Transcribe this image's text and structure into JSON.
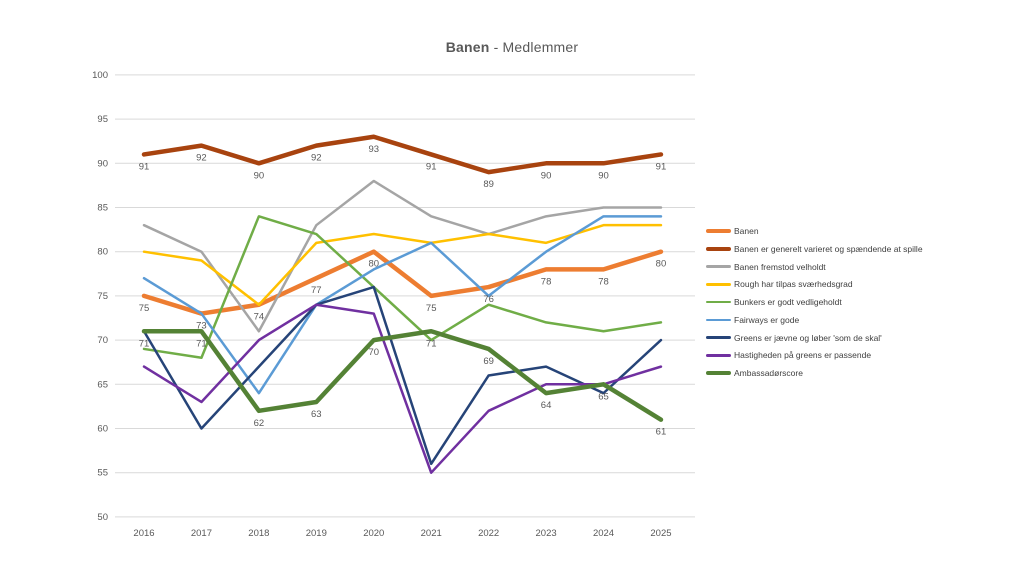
{
  "title": {
    "prefix": "Banen",
    "suffix": " - Medlemmer"
  },
  "styles": {
    "grid_color": "#D9D9D9",
    "axis_text_color": "#595959",
    "data_label_color": "#595959",
    "legend_text_color": "#404040",
    "background": "#FFFFFF"
  },
  "chart_data": {
    "type": "line",
    "title": "Banen - Medlemmer",
    "xlabel": "",
    "ylabel": "",
    "x": [
      "2016",
      "2017",
      "2018",
      "2019",
      "2020",
      "2021",
      "2022",
      "2023",
      "2024",
      "2025"
    ],
    "ylim": [
      50,
      100
    ],
    "yticks": [
      50,
      55,
      60,
      65,
      70,
      75,
      80,
      85,
      90,
      95,
      100
    ],
    "grid": "horizontal-only",
    "legend_position": "right",
    "series": [
      {
        "name": "Banen",
        "color": "#ED7D31",
        "thick": true,
        "show_labels": true,
        "values": [
          75,
          73,
          74,
          77,
          80,
          75,
          76,
          78,
          78,
          80
        ]
      },
      {
        "name": "Banen er generelt varieret og spændende at spille",
        "color": "#A8430F",
        "thick": true,
        "show_labels": true,
        "values": [
          91,
          92,
          90,
          92,
          93,
          91,
          89,
          90,
          90,
          91
        ]
      },
      {
        "name": "Banen fremstod velholdt",
        "color": "#A5A5A5",
        "thick": false,
        "show_labels": false,
        "values": [
          83,
          80,
          71,
          83,
          88,
          84,
          82,
          84,
          85,
          85
        ]
      },
      {
        "name": "Rough har tilpas sværhedsgrad",
        "color": "#FFC000",
        "thick": false,
        "show_labels": false,
        "values": [
          80,
          79,
          74,
          81,
          82,
          81,
          82,
          81,
          83,
          83
        ]
      },
      {
        "name": "Bunkers er godt vedligeholdt",
        "color": "#70AD47",
        "thick": false,
        "show_labels": false,
        "values": [
          69,
          68,
          84,
          82,
          76,
          70,
          74,
          72,
          71,
          72
        ]
      },
      {
        "name": "Fairways er gode",
        "color": "#5B9BD5",
        "thick": false,
        "show_labels": false,
        "values": [
          77,
          73,
          64,
          74,
          78,
          81,
          75,
          80,
          84,
          84
        ]
      },
      {
        "name": "Greens er jævne og løber 'som de skal'",
        "color": "#264478",
        "thick": false,
        "show_labels": false,
        "values": [
          71,
          60,
          67,
          74,
          76,
          56,
          66,
          67,
          64,
          70
        ]
      },
      {
        "name": "Hastigheden på greens er passende",
        "color": "#7030A0",
        "thick": false,
        "show_labels": false,
        "values": [
          67,
          63,
          70,
          74,
          73,
          55,
          62,
          65,
          65,
          67
        ]
      },
      {
        "name": "Ambassadørscore",
        "color": "#548235",
        "thick": true,
        "show_labels": true,
        "values": [
          71,
          71,
          62,
          63,
          70,
          71,
          69,
          64,
          65,
          61
        ]
      }
    ]
  }
}
